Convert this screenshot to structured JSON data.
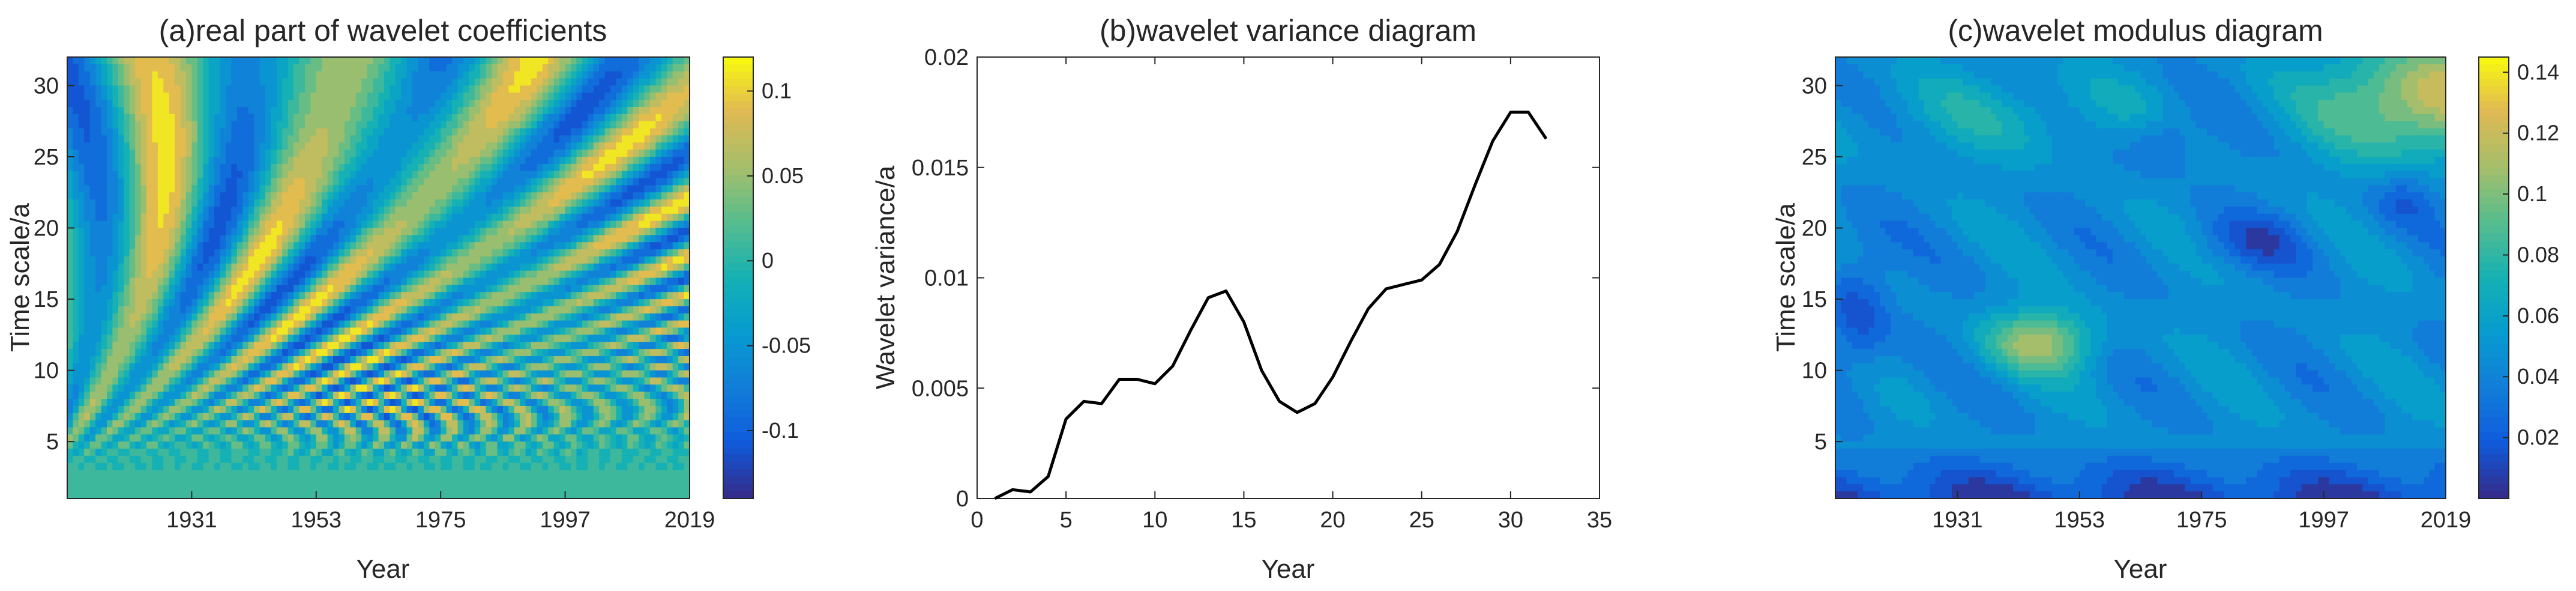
{
  "panels": {
    "a": {
      "title": "(a)real part of wavelet coefficients",
      "xlabel": "Year",
      "ylabel": "Time scale/a",
      "xticks": [
        "1931",
        "1953",
        "1975",
        "1997",
        "2019"
      ],
      "yticks": [
        "5",
        "10",
        "15",
        "20",
        "25",
        "30"
      ],
      "colorbar_ticks": [
        "0.1",
        "0.05",
        "0",
        "-0.05",
        "-0.1"
      ]
    },
    "b": {
      "title": "(b)wavelet variance diagram",
      "xlabel": "Year",
      "ylabel": "Wavelet variance/a",
      "xticks": [
        "0",
        "5",
        "10",
        "15",
        "20",
        "25",
        "30",
        "35"
      ],
      "yticks": [
        "0",
        "0.005",
        "0.01",
        "0.015",
        "0.02"
      ]
    },
    "c": {
      "title": "(c)wavelet modulus diagram",
      "xlabel": "Year",
      "ylabel": "Time scale/a",
      "xticks": [
        "1931",
        "1953",
        "1975",
        "1997",
        "2019"
      ],
      "yticks": [
        "5",
        "10",
        "15",
        "20",
        "25",
        "30"
      ],
      "colorbar_ticks": [
        "0.14",
        "0.12",
        "0.1",
        "0.08",
        "0.06",
        "0.04",
        "0.02"
      ]
    }
  },
  "chart_data": [
    {
      "type": "heatmap",
      "title": "(a)real part of wavelet coefficients",
      "xlabel": "Year",
      "ylabel": "Time scale/a",
      "xlim": [
        1909,
        2019
      ],
      "ylim": [
        1,
        32
      ],
      "colorbar_range": [
        -0.14,
        0.12
      ],
      "colormap": "parula"
    },
    {
      "type": "line",
      "title": "(b)wavelet variance diagram",
      "xlabel": "Year",
      "ylabel": "Wavelet variance/a",
      "xlim": [
        0,
        35
      ],
      "ylim": [
        0,
        0.02
      ],
      "grid": false,
      "x": [
        1,
        2,
        3,
        4,
        5,
        6,
        7,
        8,
        9,
        10,
        11,
        12,
        13,
        14,
        15,
        16,
        17,
        18,
        19,
        20,
        21,
        22,
        23,
        24,
        25,
        26,
        27,
        28,
        29,
        30,
        31,
        32
      ],
      "series": [
        {
          "color": "#000000",
          "values": [
            0.0,
            0.0004,
            0.0003,
            0.001,
            0.0036,
            0.0044,
            0.0043,
            0.0054,
            0.0054,
            0.0052,
            0.006,
            0.0076,
            0.0091,
            0.0094,
            0.008,
            0.0058,
            0.0044,
            0.0039,
            0.0043,
            0.0055,
            0.0071,
            0.0086,
            0.0095,
            0.0097,
            0.0099,
            0.0106,
            0.0121,
            0.0142,
            0.0162,
            0.0175,
            0.0175,
            0.0163
          ]
        }
      ]
    },
    {
      "type": "heatmap",
      "title": "(c)wavelet modulus diagram",
      "xlabel": "Year",
      "ylabel": "Time scale/a",
      "xlim": [
        1909,
        2019
      ],
      "ylim": [
        1,
        32
      ],
      "colorbar_range": [
        0.0,
        0.145
      ],
      "colormap": "parula"
    }
  ]
}
